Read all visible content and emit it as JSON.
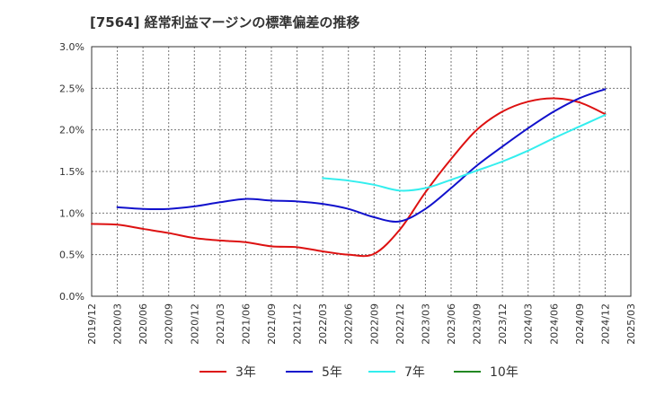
{
  "chart_data": {
    "type": "line",
    "title": "[7564]  経常利益マージンの標準偏差の推移",
    "xlabel": "",
    "ylabel": "",
    "x": [
      "2019/12",
      "2020/03",
      "2020/06",
      "2020/09",
      "2020/12",
      "2021/03",
      "2021/06",
      "2021/09",
      "2021/12",
      "2022/03",
      "2022/06",
      "2022/09",
      "2022/12",
      "2023/03",
      "2023/06",
      "2023/09",
      "2023/12",
      "2024/03",
      "2024/06",
      "2024/09",
      "2024/12",
      "2025/03"
    ],
    "yticks": [
      "0.0%",
      "0.5%",
      "1.0%",
      "1.5%",
      "2.0%",
      "2.5%",
      "3.0%"
    ],
    "ylim": [
      0,
      3.0
    ],
    "grid": true,
    "legend_position": "bottom",
    "series": [
      {
        "name": "3年",
        "color": "#dd1111",
        "values": [
          0.87,
          0.86,
          0.81,
          0.76,
          0.7,
          0.67,
          0.65,
          0.6,
          0.59,
          0.54,
          0.5,
          0.51,
          0.8,
          1.25,
          1.65,
          2.0,
          2.22,
          2.34,
          2.38,
          2.33,
          2.19,
          null
        ]
      },
      {
        "name": "5年",
        "color": "#1111cc",
        "values": [
          null,
          1.07,
          1.05,
          1.05,
          1.08,
          1.13,
          1.17,
          1.15,
          1.14,
          1.11,
          1.05,
          0.95,
          0.9,
          1.05,
          1.3,
          1.57,
          1.8,
          2.02,
          2.22,
          2.38,
          2.49,
          null
        ]
      },
      {
        "name": "7年",
        "color": "#33eeee",
        "values": [
          null,
          null,
          null,
          null,
          null,
          null,
          null,
          null,
          null,
          1.42,
          1.39,
          1.34,
          1.27,
          1.3,
          1.4,
          1.51,
          1.62,
          1.75,
          1.9,
          2.04,
          2.18,
          null
        ]
      },
      {
        "name": "10年",
        "color": "#228822",
        "values": [
          null,
          null,
          null,
          null,
          null,
          null,
          null,
          null,
          null,
          null,
          null,
          null,
          null,
          null,
          null,
          null,
          null,
          null,
          null,
          null,
          null,
          null
        ]
      }
    ]
  }
}
